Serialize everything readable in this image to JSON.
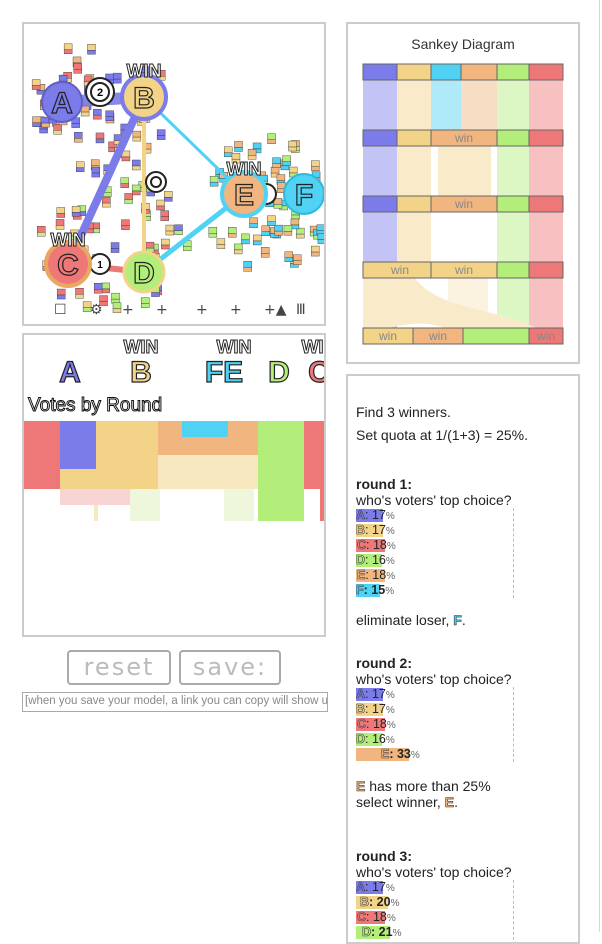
{
  "colors": {
    "A": "#7b7bea",
    "B": "#f2d388",
    "C": "#ee7878",
    "D": "#b3ee7b",
    "E": "#f1b67f",
    "F": "#4fd2f3"
  },
  "sim": {
    "win_label": "WIN",
    "candidates": [
      "A",
      "B",
      "C",
      "D",
      "E",
      "F"
    ],
    "markers": [
      "2",
      "1"
    ],
    "tool_icons": [
      "voter-tool-icon",
      "gear-tool-icon",
      "add-candidate-icon",
      "add-voter-icon",
      "add-crowd-icon",
      "add-triangle-icon",
      "columns-icon"
    ]
  },
  "votes_by_round": {
    "win_label": "WIN",
    "header_letters": [
      "A",
      "B",
      "FE",
      "D",
      "C"
    ],
    "title": "Votes by Round"
  },
  "buttons": {
    "reset": "reset",
    "save": "save:"
  },
  "link_field": {
    "placeholder": "[when you save your model, a link you can copy will show up here]"
  },
  "sankey": {
    "title": "Sankey Diagram",
    "win_label": "win"
  },
  "text": {
    "intro": "Find 3 winners.",
    "quota": "Set quota at 1/(1+3) = 25%.",
    "rounds": [
      {
        "title": "round 1:",
        "question": "who's voters' top choice?",
        "rows": [
          {
            "cand": "A",
            "value": "17",
            "frac": 0.17,
            "bold": false
          },
          {
            "cand": "B",
            "value": "17",
            "frac": 0.17,
            "bold": false
          },
          {
            "cand": "C",
            "value": "18",
            "frac": 0.18,
            "bold": false
          },
          {
            "cand": "D",
            "value": "16",
            "frac": 0.16,
            "bold": false
          },
          {
            "cand": "E",
            "value": "18",
            "frac": 0.18,
            "bold": false
          },
          {
            "cand": "F",
            "value": "15",
            "frac": 0.15,
            "bold": true
          }
        ],
        "result_prefix": "eliminate loser, ",
        "result_cand": "F",
        "result_suffix": "."
      },
      {
        "title": "round 2:",
        "question": "who's voters' top choice?",
        "rows": [
          {
            "cand": "A",
            "value": "17",
            "frac": 0.17,
            "bold": false
          },
          {
            "cand": "B",
            "value": "17",
            "frac": 0.17,
            "bold": false
          },
          {
            "cand": "C",
            "value": "18",
            "frac": 0.18,
            "bold": false
          },
          {
            "cand": "D",
            "value": "16",
            "frac": 0.16,
            "bold": false
          },
          {
            "cand": "E",
            "value": "33",
            "frac": 0.33,
            "bold": true
          }
        ],
        "result_line1": "has more than 25%",
        "result_line1_cand": "E",
        "result_line2_prefix": "select winner, ",
        "result_line2_cand": "E",
        "result_line2_suffix": "."
      },
      {
        "title": "round 3:",
        "question": "who's voters' top choice?",
        "rows": [
          {
            "cand": "A",
            "value": "17",
            "frac": 0.17,
            "bold": false
          },
          {
            "cand": "B",
            "value": "20",
            "frac": 0.2,
            "bold": true
          },
          {
            "cand": "C",
            "value": "18",
            "frac": 0.18,
            "bold": false
          },
          {
            "cand": "D",
            "value": "21",
            "frac": 0.21,
            "bold": true
          }
        ]
      }
    ],
    "percent_sign": "%"
  }
}
